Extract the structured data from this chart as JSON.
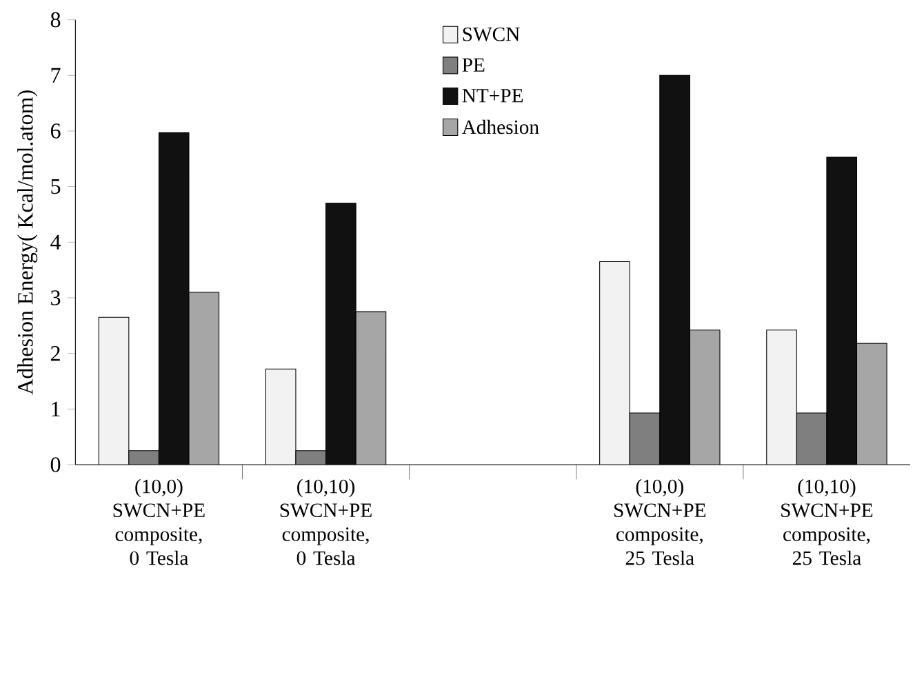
{
  "chart_data": {
    "type": "bar",
    "ylabel": "Adhesion Energy( Kcal/mol.atom)",
    "categories": [
      "(10,0) SWCN+PE composite,  0 Tesla",
      "(10,10) SWCN+PE composite, 0 Tesla",
      null,
      "(10,0) SWCN+PE composite, 25 Tesla",
      "(10,10) SWCN+PE composite, 25 Tesla"
    ],
    "series": [
      {
        "name": "SWCN",
        "color": "#f2f2f2",
        "values": [
          2.65,
          1.72,
          null,
          3.65,
          2.42
        ]
      },
      {
        "name": "PE",
        "color": "#7f7f7f",
        "values": [
          0.25,
          0.25,
          null,
          0.93,
          0.93
        ]
      },
      {
        "name": "NT+PE",
        "color": "#111111",
        "values": [
          5.97,
          4.7,
          null,
          7.0,
          5.53
        ]
      },
      {
        "name": "Adhesion",
        "color": "#a6a6a6",
        "values": [
          3.1,
          2.75,
          null,
          2.42,
          2.18
        ]
      }
    ],
    "ylim": [
      0,
      8
    ],
    "yticks": [
      0,
      1,
      2,
      3,
      4,
      5,
      6,
      7,
      8
    ],
    "grid": false,
    "legend": "top"
  }
}
